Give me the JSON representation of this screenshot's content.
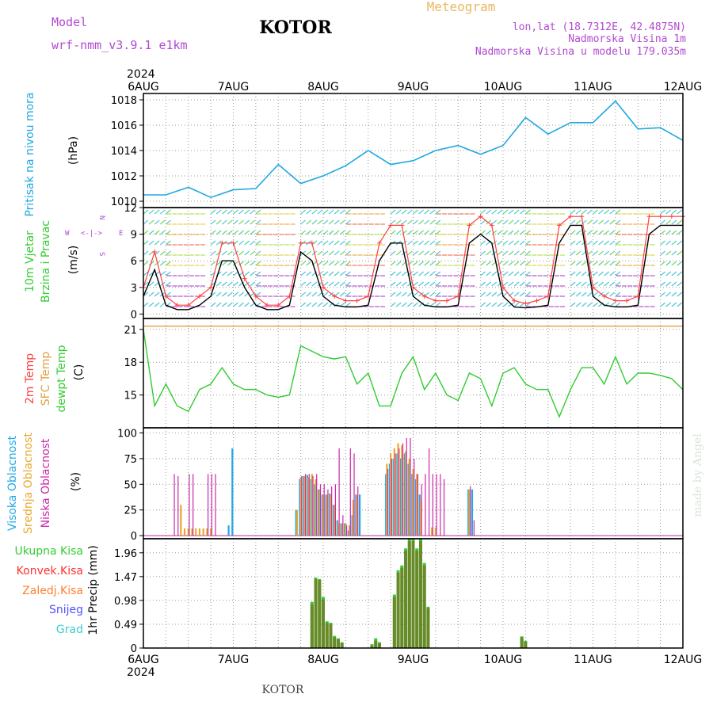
{
  "header": {
    "title": "KOTOR",
    "model_label": "Model",
    "model_name": "wrf-nmm_v3.9.1 e1km",
    "meteogram_label": "Meteogram",
    "lonlat": "lon,lat (18.7312E, 42.4875N)",
    "elevation": "Nadmorska Visina 1m",
    "model_elevation": "Nadmorska Visina u modelu 179.035m"
  },
  "footer": {
    "station": "KOTOR",
    "watermark": "made by Angel"
  },
  "time_axis": {
    "year": "2024",
    "labels": [
      "6AUG",
      "7AUG",
      "8AUG",
      "9AUG",
      "10AUG",
      "11AUG",
      "12AUG"
    ]
  },
  "colors": {
    "pressure": "#1fa8e0",
    "wind_speed": "#000000",
    "gust": "#ff4040",
    "temp2m": "#ff5050",
    "sfc_temp": "#e0a040",
    "dewpoint": "#33cc33",
    "cloud_high": "#22a8e8",
    "cloud_mid": "#e8a830",
    "cloud_low": "#cc2aa8",
    "precip_total": "#33cc33",
    "precip_conv": "#ff3030",
    "precip_frozen": "#ff8030",
    "snow": "#5050ff",
    "grad": "#3ccdcd"
  },
  "panels": {
    "pressure": {
      "label": "Pritisak na nivou mora",
      "unit": "(hPa)"
    },
    "wind": {
      "label1": "10m Vjetar",
      "label2": "Brzina i Pravac",
      "unit": "(m/s)",
      "compass_w": "W",
      "compass_e": "E",
      "compass_n": "N",
      "compass_s": "S"
    },
    "temp": {
      "label_2m": "2m Temp",
      "label_sfc": "SFC Temp",
      "label_dew": "dewpt Temp",
      "unit": "(C)"
    },
    "cloud": {
      "label_high": "Visoka Oblacnost",
      "label_mid": "Srednja Oblacnost",
      "label_low": "Niska Oblacnost",
      "unit": "(%)"
    },
    "precip": {
      "label_total": "Ukupna Kisa",
      "label_conv": "Konvek.Kisa",
      "label_frozen": "Zaledj.Kisa",
      "label_snow": "Snijeg",
      "label_grad": "Grad",
      "unit": "1hr Precip (mm)"
    }
  },
  "chart_data": [
    {
      "type": "line",
      "name": "pressure",
      "ylabel": "(hPa)",
      "ylim": [
        1009.5,
        1018.5
      ],
      "yticks": [
        "1010",
        "1012",
        "1014",
        "1016",
        "1018"
      ],
      "x": [
        0,
        6,
        12,
        18,
        24,
        30,
        36,
        42,
        48,
        54,
        60,
        66,
        72,
        78,
        84,
        90,
        96,
        102,
        108,
        114,
        120,
        126,
        132,
        138,
        144
      ],
      "values": [
        1010.5,
        1010.5,
        1011.1,
        1010.3,
        1010.9,
        1011.0,
        1012.9,
        1011.4,
        1012.0,
        1012.8,
        1014.0,
        1012.9,
        1013.2,
        1014.0,
        1014.4,
        1013.7,
        1014.4,
        1016.6,
        1015.3,
        1016.2,
        1016.2,
        1017.9,
        1015.7,
        1015.8,
        1014.8
      ],
      "grid": true
    },
    {
      "type": "line",
      "name": "wind",
      "ylabel": "(m/s)",
      "ylim": [
        -0.5,
        12
      ],
      "yticks": [
        "0",
        "3",
        "6",
        "9",
        "12"
      ],
      "x": [
        0,
        3,
        6,
        9,
        12,
        15,
        18,
        21,
        24,
        27,
        30,
        33,
        36,
        39,
        42,
        45,
        48,
        51,
        54,
        57,
        60,
        63,
        66,
        69,
        72,
        75,
        78,
        81,
        84,
        87,
        90,
        93,
        96,
        99,
        102,
        105,
        108,
        111,
        114,
        117,
        120,
        123,
        126,
        129,
        132,
        135,
        138,
        141,
        144
      ],
      "series": [
        {
          "name": "speed",
          "values": [
            2,
            5,
            1,
            0.5,
            0.5,
            1,
            2,
            6,
            6,
            3,
            1,
            0.5,
            0.5,
            1,
            7,
            6,
            2,
            1,
            0.8,
            0.8,
            1,
            6,
            8,
            8,
            2,
            1,
            0.8,
            0.8,
            1,
            8,
            9,
            8,
            2,
            0.8,
            0.7,
            0.8,
            1,
            8,
            10,
            10,
            2,
            1,
            0.8,
            0.8,
            1,
            9,
            10,
            10,
            10
          ]
        },
        {
          "name": "gust",
          "values": [
            3,
            7,
            2,
            1,
            1,
            2,
            3,
            8,
            8,
            4,
            2,
            1,
            1,
            2,
            8,
            8,
            3,
            2,
            1.5,
            1.5,
            2,
            8,
            10,
            10,
            3,
            2,
            1.5,
            1.5,
            2,
            10,
            11,
            10,
            3,
            1.5,
            1.2,
            1.5,
            2,
            10,
            11,
            11,
            3,
            2,
            1.5,
            1.5,
            2,
            11,
            11,
            11,
            11
          ]
        }
      ],
      "grid": true
    },
    {
      "type": "line",
      "name": "temperature",
      "ylabel": "(C)",
      "ylim": [
        12,
        22
      ],
      "yticks": [
        "15",
        "18",
        "21"
      ],
      "x": [
        0,
        3,
        6,
        9,
        12,
        15,
        18,
        21,
        24,
        27,
        30,
        33,
        36,
        39,
        42,
        45,
        48,
        51,
        54,
        57,
        60,
        63,
        66,
        69,
        72,
        75,
        78,
        81,
        84,
        87,
        90,
        93,
        96,
        99,
        102,
        105,
        108,
        111,
        114,
        117,
        120,
        123,
        126,
        129,
        132,
        135,
        138,
        141,
        144
      ],
      "series": [
        {
          "name": "sfc",
          "values": [
            21.3,
            21.3,
            21.3,
            21.3,
            21.3,
            21.3,
            21.3,
            21.3,
            21.3,
            21.3,
            21.3,
            21.3,
            21.3,
            21.3,
            21.3,
            21.3,
            21.3,
            21.3,
            21.3,
            21.3,
            21.3,
            21.3,
            21.3,
            21.3,
            21.3,
            21.3,
            21.3,
            21.3,
            21.3,
            21.3,
            21.3,
            21.3,
            21.3,
            21.3,
            21.3,
            21.3,
            21.3,
            21.3,
            21.3,
            21.3,
            21.3,
            21.3,
            21.3,
            21.3,
            21.3,
            21.3,
            21.3,
            21.3,
            21.3
          ]
        },
        {
          "name": "dew",
          "values": [
            21,
            14,
            16,
            14,
            13.5,
            15.5,
            16,
            17.5,
            16,
            15.5,
            15.5,
            15,
            14.8,
            15,
            19.5,
            19,
            18.5,
            18.3,
            18.5,
            16,
            17,
            14,
            14,
            17,
            18.5,
            15.5,
            17,
            15,
            14.5,
            17,
            16.5,
            14,
            17,
            17.5,
            16,
            15.5,
            15.5,
            13,
            15.5,
            17.5,
            17.5,
            16,
            18.5,
            16,
            17,
            17,
            16.8,
            16.5,
            15.5
          ]
        }
      ],
      "grid": true
    },
    {
      "type": "bar",
      "name": "cloud",
      "ylabel": "(%)",
      "ylim": [
        -3,
        105
      ],
      "yticks": [
        "0",
        "25",
        "50",
        "75",
        "100"
      ],
      "x": [
        8,
        9,
        10,
        11,
        12,
        13,
        14,
        15,
        16,
        17,
        18,
        19,
        20,
        21,
        22,
        23,
        24,
        41,
        42,
        43,
        44,
        45,
        46,
        47,
        48,
        49,
        50,
        51,
        52,
        53,
        54,
        55,
        56,
        57,
        58,
        59,
        60,
        61,
        62,
        63,
        64,
        65,
        66,
        67,
        68,
        69,
        70,
        71,
        72,
        73,
        74,
        75,
        76,
        77,
        78,
        79,
        80,
        81,
        82,
        83,
        84,
        85,
        86,
        87,
        88,
        89,
        90,
        91,
        92,
        93,
        94,
        95,
        96,
        97,
        98,
        99,
        100,
        101,
        102,
        103,
        104
      ],
      "series": [
        {
          "name": "high",
          "values": [
            0,
            0,
            0,
            0,
            0,
            0,
            0,
            0,
            0,
            0,
            0,
            0,
            0,
            0,
            0,
            10,
            85,
            25,
            55,
            58,
            59,
            55,
            50,
            45,
            40,
            40,
            41,
            30,
            15,
            12,
            12,
            5,
            20,
            40,
            40,
            0,
            0,
            0,
            0,
            0,
            0,
            60,
            70,
            75,
            80,
            75,
            80,
            70,
            60,
            55,
            40,
            0,
            0,
            0,
            0,
            0,
            0,
            0,
            0,
            0,
            0,
            0,
            0,
            45,
            45,
            0,
            0,
            0,
            0,
            0,
            0,
            0,
            0,
            0,
            0,
            0,
            0,
            0,
            0,
            0,
            0
          ]
        },
        {
          "name": "mid",
          "values": [
            0,
            0,
            30,
            7,
            7,
            7,
            7,
            7,
            7,
            7,
            7,
            0,
            0,
            0,
            0,
            0,
            0,
            25,
            57,
            58,
            57,
            60,
            55,
            45,
            40,
            40,
            40,
            30,
            12,
            12,
            12,
            10,
            35,
            40,
            0,
            0,
            0,
            0,
            0,
            0,
            0,
            70,
            80,
            85,
            90,
            88,
            82,
            75,
            65,
            60,
            35,
            0,
            0,
            8,
            8,
            0,
            0,
            0,
            0,
            0,
            0,
            0,
            0,
            45,
            0,
            0,
            0,
            0,
            0,
            0,
            0,
            0,
            0,
            0,
            0,
            0,
            0,
            0,
            0,
            0,
            0
          ]
        },
        {
          "name": "low",
          "values": [
            60,
            58,
            0,
            0,
            60,
            60,
            0,
            0,
            0,
            60,
            60,
            60,
            0,
            0,
            0,
            0,
            0,
            0,
            58,
            60,
            60,
            58,
            60,
            50,
            50,
            45,
            48,
            50,
            85,
            20,
            10,
            85,
            80,
            48,
            0,
            0,
            0,
            0,
            0,
            0,
            0,
            65,
            75,
            80,
            85,
            90,
            95,
            95,
            75,
            60,
            50,
            60,
            85,
            60,
            60,
            60,
            55,
            0,
            0,
            0,
            0,
            0,
            0,
            48,
            15,
            0,
            0,
            0,
            0,
            0,
            0,
            0,
            0,
            0,
            0,
            0,
            0,
            0,
            0,
            0,
            0
          ]
        }
      ],
      "grid": true
    },
    {
      "type": "bar",
      "name": "precipitation",
      "ylabel": "1hr Precip (mm)",
      "ylim": [
        0,
        2.25
      ],
      "yticks": [
        "0",
        "0.49",
        "0.98",
        "1.47",
        "1.96"
      ],
      "x": [
        45,
        46,
        47,
        48,
        49,
        50,
        51,
        52,
        53,
        54,
        55,
        56,
        57,
        58,
        59,
        60,
        61,
        62,
        63,
        64,
        65,
        66,
        67,
        68,
        69,
        70,
        71,
        72,
        73,
        74,
        75,
        76,
        77,
        78,
        79,
        80,
        81,
        82,
        83,
        84,
        85,
        86,
        87,
        88,
        89,
        90,
        91,
        92,
        93,
        94,
        95,
        96,
        97,
        98,
        99,
        100,
        101,
        102
      ],
      "series": [
        {
          "name": "total",
          "values": [
            0.95,
            1.45,
            1.42,
            1.05,
            0.55,
            0.52,
            0.25,
            0.2,
            0.12,
            0.0,
            0.0,
            0.0,
            0.0,
            0.0,
            0.0,
            0.0,
            0.08,
            0.2,
            0.12,
            0.0,
            0.0,
            0.0,
            1.1,
            1.6,
            1.7,
            2.05,
            2.25,
            2.25,
            2.05,
            2.25,
            1.75,
            0.85,
            0.0,
            0.0,
            0.0,
            0.0,
            0.0,
            0.0,
            0.0,
            0.0,
            0.0,
            0.0,
            0.0,
            0.0,
            0.0,
            0.0,
            0.0,
            0.0,
            0.0,
            0.0,
            0.0,
            0.0,
            0.0,
            0.0,
            0.0,
            0.0,
            0.24,
            0.15
          ]
        },
        {
          "name": "conv",
          "values": [
            0.9,
            1.42,
            1.4,
            1.0,
            0.52,
            0.5,
            0.22,
            0.18,
            0.1,
            0.0,
            0.0,
            0.0,
            0.0,
            0.0,
            0.0,
            0.0,
            0.05,
            0.15,
            0.1,
            0.0,
            0.0,
            0.0,
            1.05,
            1.55,
            1.65,
            2.0,
            2.2,
            2.2,
            2.0,
            2.2,
            1.7,
            0.82,
            0.0,
            0.0,
            0.0,
            0.0,
            0.0,
            0.0,
            0.0,
            0.0,
            0.0,
            0.0,
            0.0,
            0.0,
            0.0,
            0.0,
            0.0,
            0.0,
            0.0,
            0.0,
            0.0,
            0.0,
            0.0,
            0.0,
            0.0,
            0.0,
            0.22,
            0.13
          ]
        }
      ],
      "grid": true
    }
  ]
}
